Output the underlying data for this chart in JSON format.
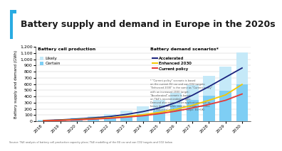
{
  "title": "Battery supply and demand in Europe in the 2020s",
  "title_color": "#1a1a1a",
  "background_color": "#ffffff",
  "accent_color": "#29abe2",
  "years": [
    2018,
    2019,
    2020,
    2021,
    2022,
    2023,
    2024,
    2025,
    2026,
    2027,
    2028,
    2029,
    2030
  ],
  "certain_values": [
    8,
    15,
    22,
    35,
    55,
    80,
    120,
    175,
    260,
    340,
    410,
    490,
    590
  ],
  "likely_values": [
    18,
    32,
    52,
    80,
    120,
    170,
    240,
    340,
    460,
    580,
    730,
    880,
    1110
  ],
  "accelerated": [
    12,
    22,
    36,
    55,
    76,
    110,
    155,
    215,
    300,
    420,
    560,
    710,
    860
  ],
  "enhanced2030": [
    9,
    16,
    27,
    41,
    56,
    78,
    105,
    143,
    192,
    258,
    338,
    425,
    595
  ],
  "current_policy": [
    7,
    13,
    22,
    34,
    48,
    66,
    88,
    122,
    163,
    215,
    272,
    338,
    440
  ],
  "ylim": [
    0,
    1200
  ],
  "yticks": [
    0,
    100,
    200,
    300,
    400,
    500,
    600,
    700,
    800,
    900,
    1000,
    1100,
    1200
  ],
  "bar_certain_color": "#7ecef4",
  "bar_likely_color": "#c5e9f8",
  "line_accelerated_color": "#1a237e",
  "line_enhanced_color": "#f5c800",
  "line_current_color": "#e53935",
  "ylabel": "Battery supply and demand (GWh)",
  "legend_title_bar": "Battery cell production",
  "legend_title_line": "Battery demand scenarios*",
  "footnote_lines": [
    "* \"Current policy\" scenario is based",
    "on the current EU car and van CO2 targets;",
    "\"Enhanced 2030\" is the same as \"Current policy\"",
    "with an increased 2030 target;",
    "\"Accelerated\" scenario is based",
    "on T&E's recommended targets.",
    "Demand also covers other applications such as",
    "heavy duty vehicles, energy storage, maritime",
    "and industrial applications. (slope: EU+UK)"
  ],
  "source": "Source: T&E analysis of battery cell production capacity plans; T&E modelling of the EU car and van CO2 targets and CO2 below"
}
